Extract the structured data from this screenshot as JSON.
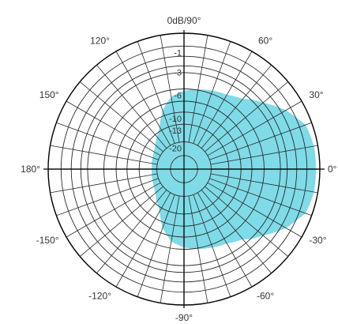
{
  "chart_data": {
    "type": "polar",
    "title": "",
    "radial_unit": "dB",
    "radial_scale_labels": [
      "-1",
      "-3",
      "-6",
      "-10",
      "-13",
      "-20"
    ],
    "radial_scale_db": [
      -1,
      -3,
      -6,
      -10,
      -13,
      -20
    ],
    "angle_labels": [
      {
        "deg": 90,
        "text": "0dB/90°"
      },
      {
        "deg": 60,
        "text": "60°"
      },
      {
        "deg": 30,
        "text": "30°"
      },
      {
        "deg": 0,
        "text": "0°"
      },
      {
        "deg": -30,
        "text": "-30°"
      },
      {
        "deg": -60,
        "text": "-60°"
      },
      {
        "deg": -90,
        "text": "-90°"
      },
      {
        "deg": -120,
        "text": "-120°"
      },
      {
        "deg": -150,
        "text": "-150°"
      },
      {
        "deg": 180,
        "text": "180°"
      },
      {
        "deg": 150,
        "text": "150°"
      },
      {
        "deg": 120,
        "text": "120°"
      }
    ],
    "spoke_step_deg": 10,
    "ring_db": [
      -1,
      -2,
      -3,
      -4,
      -6,
      -8,
      -10,
      -13,
      -20
    ],
    "pattern": {
      "angles_deg": [
        0,
        10,
        20,
        30,
        40,
        50,
        60,
        70,
        80,
        90,
        100,
        110,
        120,
        130,
        140,
        150,
        160,
        170,
        180,
        190,
        200,
        210,
        220,
        230,
        240,
        250,
        260,
        270,
        280,
        290,
        300,
        310,
        320,
        330,
        340,
        350
      ],
      "db": [
        -0.3,
        -0.3,
        -0.5,
        -1.5,
        -3.0,
        -4.6,
        -5.3,
        -5.6,
        -5.9,
        -6.3,
        -7.1,
        -9.0,
        -12.0,
        -14.0,
        -16.0,
        -17.0,
        -17.5,
        -17.8,
        -18.0,
        -17.8,
        -17.5,
        -17.0,
        -16.0,
        -14.0,
        -12.0,
        -9.0,
        -7.1,
        -6.3,
        -5.9,
        -5.6,
        -5.3,
        -4.6,
        -3.0,
        -1.5,
        -0.5,
        -0.3
      ]
    },
    "colors": {
      "fill": "#7fdbe8",
      "grid": "#2a2a2a",
      "axis": "#000000",
      "text": "#333333"
    }
  }
}
